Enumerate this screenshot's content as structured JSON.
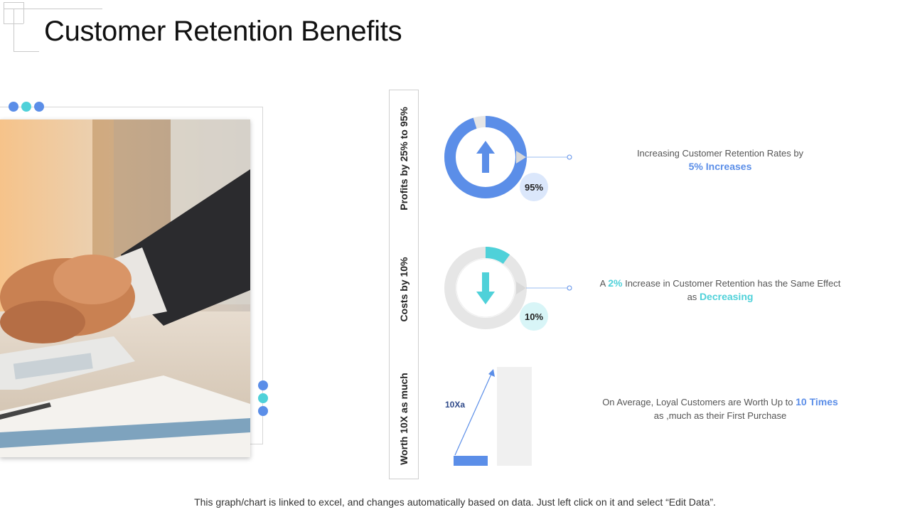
{
  "page": {
    "title": "Customer Retention Benefits",
    "footer": "This graph/chart is linked to excel, and changes automatically based on data. Just left click on it and select “Edit Data”."
  },
  "colors": {
    "blue": "#5b8ee8",
    "teal": "#4fd1d9",
    "light_blue": "#dbe7fb",
    "light_teal": "#d8f5f7",
    "grey": "#f0f0f0"
  },
  "image": {
    "subject": "handshake-photo"
  },
  "labels": {
    "profits": "Profits by 25% to 95%",
    "costs": "Costs by 10%",
    "worth": "Worth 10X as much"
  },
  "metric1": {
    "badge": "95%",
    "value": 0.95,
    "text": "Increasing Customer Retention Rates by",
    "highlight": "5% Increases",
    "icon": "arrow-up-icon"
  },
  "metric2": {
    "badge": "10%",
    "value": 0.1,
    "prefix": "A",
    "highlight1": "2%",
    "text1": "Increase  in Customer Retention has  the Same Effect",
    "text2": "as",
    "highlight2": "Decreasing",
    "icon": "arrow-down-icon"
  },
  "metric3": {
    "label": "10Xa",
    "value": 10,
    "text1": "On Average, Loyal Customers are Worth Up to",
    "highlight": "10 Times",
    "text2": "as ,much as their First Purchase"
  }
}
